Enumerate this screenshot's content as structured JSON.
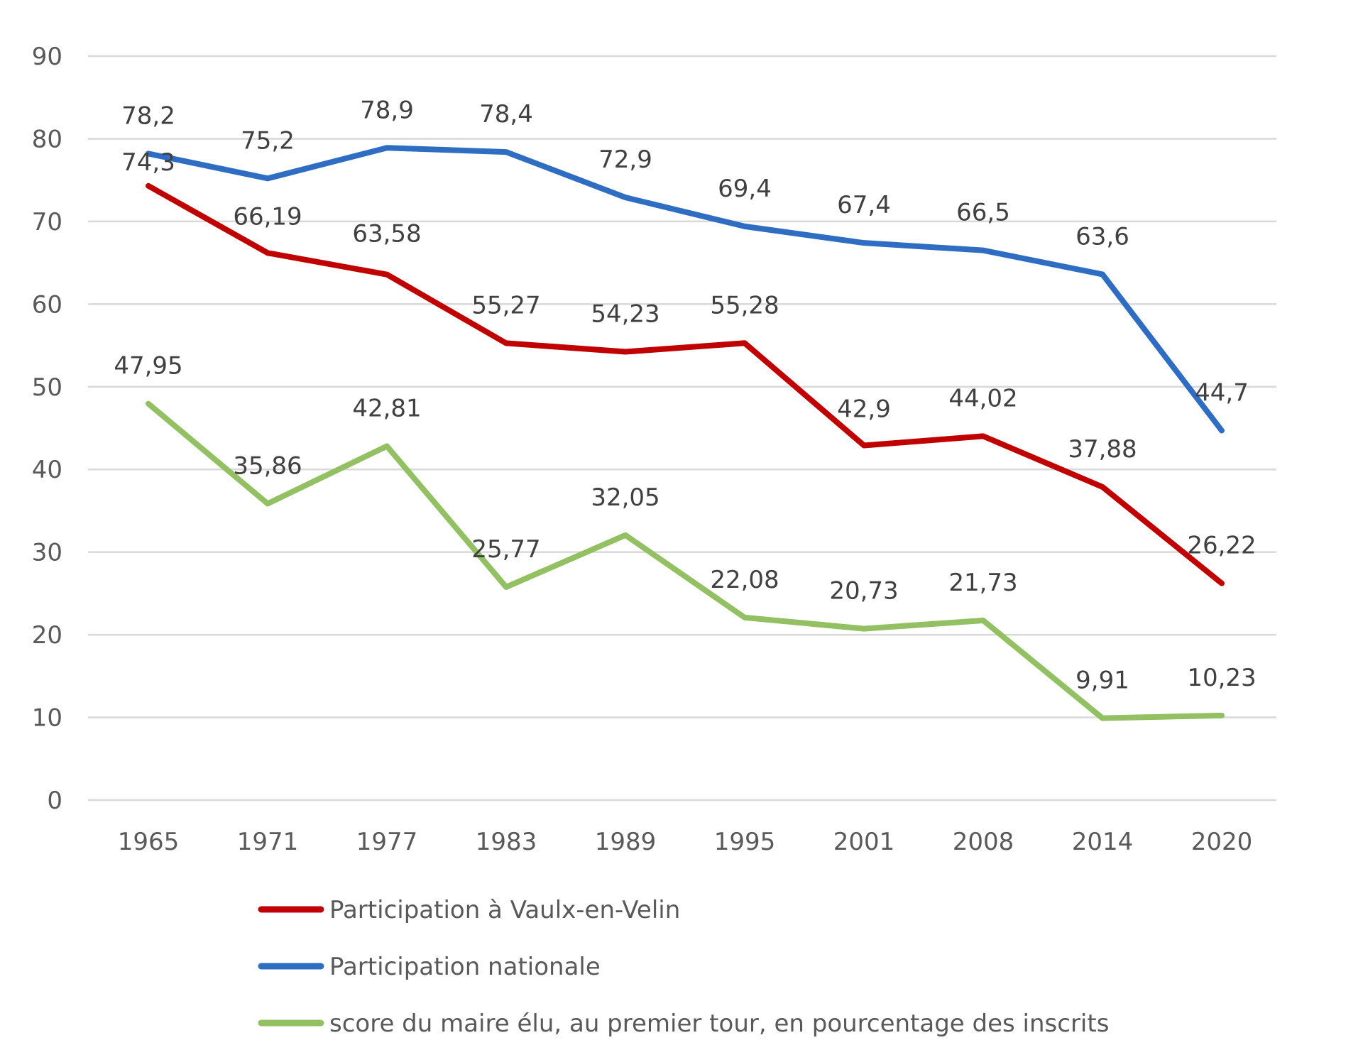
{
  "chart_data": {
    "type": "line",
    "title": "",
    "xlabel": "",
    "ylabel": "",
    "categories": [
      "1965",
      "1971",
      "1977",
      "1983",
      "1989",
      "1995",
      "2001",
      "2008",
      "2014",
      "2020"
    ],
    "ylim": [
      0,
      90
    ],
    "yticks": [
      0,
      10,
      20,
      30,
      40,
      50,
      60,
      70,
      80,
      90
    ],
    "grid": "horizontal",
    "legend_position": "bottom",
    "series": [
      {
        "name": "Participation à Vaulx-en-Velin",
        "color": "#c00000",
        "values": [
          74.3,
          66.19,
          63.58,
          55.27,
          54.23,
          55.28,
          42.9,
          44.02,
          37.88,
          26.22
        ],
        "labels": [
          "74,3",
          "66,19",
          "63,58",
          "55,27",
          "54,23",
          "55,28",
          "42,9",
          "44,02",
          "37,88",
          "26,22"
        ]
      },
      {
        "name": "Participation nationale",
        "color": "#2e6dc2",
        "values": [
          78.2,
          75.2,
          78.9,
          78.4,
          72.9,
          69.4,
          67.4,
          66.5,
          63.6,
          44.7
        ],
        "labels": [
          "78,2",
          "75,2",
          "78,9",
          "78,4",
          "72,9",
          "69,4",
          "67,4",
          "66,5",
          "63,6",
          "44,7"
        ]
      },
      {
        "name": "score du maire élu, au premier tour, en pourcentage des inscrits",
        "color": "#92c063",
        "values": [
          47.95,
          35.86,
          42.81,
          25.77,
          32.05,
          22.08,
          20.73,
          21.73,
          9.91,
          10.23
        ],
        "labels": [
          "47,95",
          "35,86",
          "42,81",
          "25,77",
          "32,05",
          "22,08",
          "20,73",
          "21,73",
          "9,91",
          "10,23"
        ]
      }
    ]
  }
}
